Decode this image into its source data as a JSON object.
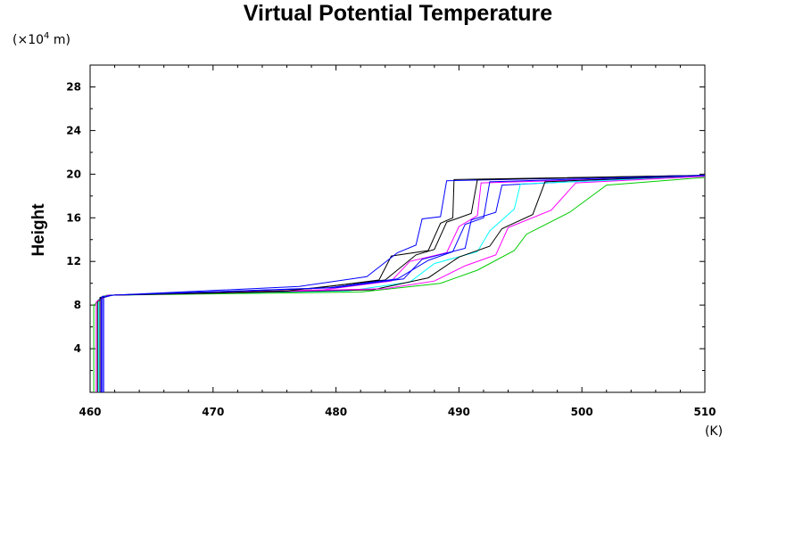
{
  "chart_data": {
    "type": "line",
    "title": "Virtual Potential Temperature",
    "ylabel": "Height",
    "y_multiplier_label": "(×10⁴ m)",
    "y_multiplier_base": "(×10",
    "y_multiplier_exp": "4",
    "y_multiplier_tail": " m)",
    "xlabel_unit": "(K)",
    "xlim": [
      460,
      510
    ],
    "ylim": [
      0,
      30
    ],
    "x_ticks": [
      460,
      470,
      480,
      490,
      500,
      510
    ],
    "x_tick_labels": [
      "460",
      "470",
      "480",
      "490",
      "500",
      "510"
    ],
    "y_ticks": [
      4,
      8,
      12,
      16,
      20,
      24,
      28
    ],
    "y_tick_labels": [
      "4",
      "8",
      "12",
      "16",
      "20",
      "24",
      "28"
    ],
    "legend": "none",
    "grid": false,
    "colors": [
      "#000000",
      "#ff00ff",
      "#0000ff",
      "#00ffff",
      "#00cc00",
      "#000000",
      "#0000ff",
      "#ff00ff",
      "#000000",
      "#0000ff"
    ],
    "series": [
      {
        "x": [
          460.8,
          460.8,
          461.5,
          478,
          483.5,
          484.5,
          487.5,
          488.5,
          489.5,
          489.6,
          510
        ],
        "y": [
          0,
          8.7,
          8.9,
          9.5,
          10.3,
          12.5,
          13.0,
          15.5,
          16.0,
          19.5,
          19.9
        ]
      },
      {
        "x": [
          460.9,
          460.9,
          461.6,
          479,
          484.5,
          486.0,
          489.0,
          490.0,
          491.5,
          491.8,
          510
        ],
        "y": [
          0,
          8.6,
          8.9,
          9.4,
          10.2,
          12.0,
          12.8,
          15.2,
          16.2,
          19.2,
          19.8
        ]
      },
      {
        "x": [
          461.0,
          461.0,
          461.7,
          480,
          485.5,
          487.0,
          490.5,
          491.0,
          493.0,
          493.5,
          510
        ],
        "y": [
          0,
          8.8,
          8.9,
          9.6,
          10.4,
          12.2,
          13.2,
          15.8,
          16.5,
          19.0,
          19.9
        ]
      },
      {
        "x": [
          460.7,
          460.7,
          461.4,
          481,
          486.0,
          488.0,
          491.5,
          492.5,
          494.5,
          495.0,
          510
        ],
        "y": [
          0,
          8.5,
          8.9,
          9.3,
          10.1,
          11.8,
          12.9,
          14.8,
          16.8,
          19.1,
          19.8
        ]
      },
      {
        "x": [
          460.3,
          460.3,
          461.3,
          482,
          488.5,
          491.5,
          494.5,
          495.5,
          499.0,
          502.0,
          510
        ],
        "y": [
          0,
          8.0,
          8.9,
          9.2,
          10.0,
          11.2,
          13.0,
          14.5,
          16.5,
          19.0,
          19.7
        ]
      },
      {
        "x": [
          460.6,
          460.6,
          461.5,
          483,
          487.5,
          490.0,
          492.5,
          493.5,
          496.0,
          497.0,
          510
        ],
        "y": [
          0,
          8.4,
          8.9,
          9.4,
          10.5,
          12.4,
          13.4,
          15.0,
          16.3,
          19.3,
          19.9
        ]
      },
      {
        "x": [
          461.1,
          461.1,
          461.8,
          477,
          482.5,
          485.0,
          486.5,
          487.0,
          488.5,
          489.0,
          510
        ],
        "y": [
          0,
          8.7,
          8.9,
          9.7,
          10.6,
          12.8,
          13.5,
          15.9,
          16.1,
          19.4,
          19.9
        ]
      },
      {
        "x": [
          460.5,
          460.5,
          461.4,
          484,
          488.0,
          490.5,
          493.0,
          494.0,
          497.5,
          499.5,
          510
        ],
        "y": [
          0,
          8.3,
          8.9,
          9.5,
          10.2,
          11.6,
          12.6,
          15.1,
          16.7,
          19.2,
          19.8
        ]
      },
      {
        "x": [
          460.8,
          460.8,
          461.6,
          476,
          484.0,
          486.5,
          488.0,
          489.0,
          491.0,
          491.5,
          510
        ],
        "y": [
          0,
          8.6,
          8.9,
          9.3,
          10.3,
          12.6,
          13.1,
          15.6,
          16.4,
          19.5,
          19.9
        ]
      },
      {
        "x": [
          460.9,
          460.9,
          461.7,
          479.5,
          485.0,
          487.5,
          489.5,
          490.5,
          492.0,
          492.5,
          510
        ],
        "y": [
          0,
          8.7,
          8.9,
          9.6,
          10.4,
          12.1,
          12.9,
          15.4,
          16.0,
          19.3,
          19.9
        ]
      }
    ]
  }
}
